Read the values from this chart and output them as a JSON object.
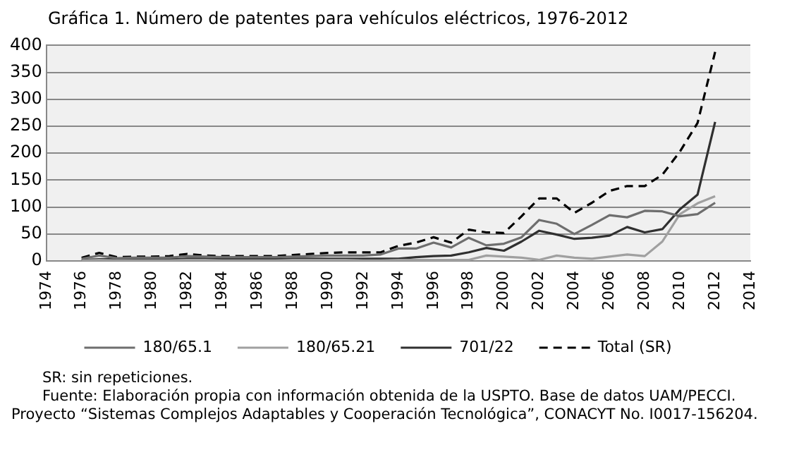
{
  "chart_data": {
    "type": "line",
    "title": "Gráfica 1. Número de patentes para vehículos eléctricos, 1976-2012",
    "x": [
      1976,
      1977,
      1978,
      1979,
      1980,
      1981,
      1982,
      1983,
      1984,
      1985,
      1986,
      1987,
      1988,
      1989,
      1990,
      1991,
      1992,
      1993,
      1994,
      1995,
      1996,
      1997,
      1998,
      1999,
      2000,
      2001,
      2002,
      2003,
      2004,
      2005,
      2006,
      2007,
      2008,
      2009,
      2010,
      2011,
      2012
    ],
    "series": [
      {
        "name": "180/65.1",
        "color": "#6e6e6e",
        "values": [
          4,
          10,
          5,
          6,
          6,
          6,
          9,
          8,
          7,
          7,
          7,
          7,
          8,
          9,
          10,
          10,
          10,
          12,
          23,
          23,
          34,
          25,
          43,
          29,
          32,
          44,
          76,
          69,
          50,
          67,
          85,
          81,
          93,
          92,
          83,
          87,
          108
        ]
      },
      {
        "name": "180/65.21",
        "color": "#a0a0a0",
        "values": [
          1,
          2,
          1,
          1,
          1,
          1,
          2,
          2,
          1,
          1,
          1,
          1,
          2,
          2,
          2,
          2,
          1,
          1,
          2,
          2,
          2,
          2,
          2,
          10,
          8,
          6,
          2,
          10,
          6,
          4,
          8,
          12,
          9,
          36,
          87,
          107,
          120
        ]
      },
      {
        "name": "701/22",
        "color": "#303030",
        "values": [
          2,
          3,
          3,
          3,
          3,
          3,
          4,
          4,
          3,
          3,
          3,
          3,
          4,
          4,
          4,
          4,
          4,
          4,
          4,
          7,
          9,
          10,
          16,
          24,
          19,
          36,
          56,
          49,
          41,
          43,
          47,
          63,
          53,
          59,
          96,
          123,
          258
        ]
      },
      {
        "name": "Total (SR)",
        "color": "#000000",
        "line_style": "dashed",
        "values": [
          6,
          15,
          7,
          8,
          8,
          9,
          13,
          10,
          9,
          9,
          9,
          9,
          11,
          13,
          15,
          16,
          16,
          16,
          28,
          34,
          44,
          34,
          58,
          53,
          52,
          83,
          116,
          116,
          89,
          108,
          130,
          139,
          139,
          160,
          203,
          256,
          388
        ]
      }
    ],
    "xlim": [
      1974,
      2014
    ],
    "xticks": [
      1974,
      1976,
      1978,
      1980,
      1982,
      1984,
      1986,
      1988,
      1990,
      1992,
      1994,
      1996,
      1998,
      2000,
      2002,
      2004,
      2006,
      2008,
      2010,
      2012,
      2014
    ],
    "ylim": [
      0,
      400
    ],
    "yticks": [
      0,
      50,
      100,
      150,
      200,
      250,
      300,
      350,
      400
    ],
    "grid": "y",
    "legend": "bottom",
    "marker": "none",
    "line_style": "solid",
    "annotations": [
      "SR: sin repeticiones.",
      "Fuente: Elaboración propia con información obtenida de la USPTO. Base de datos UAM/PECCI. Proyecto “Sistemas Complejos Adaptables y Cooperación Tecnológica”, CONACYT No. I0017-156204."
    ]
  }
}
